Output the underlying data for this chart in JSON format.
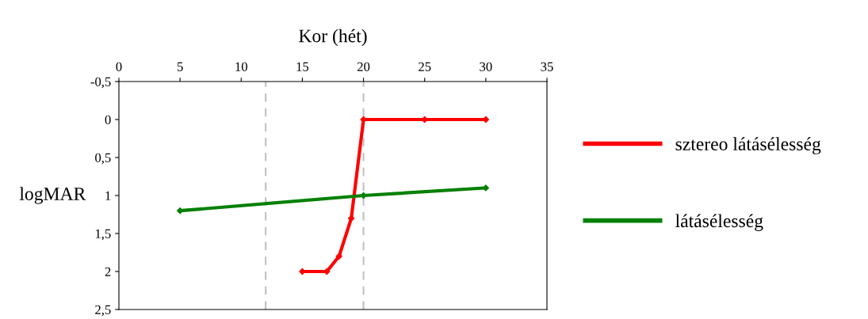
{
  "chart_data": {
    "type": "line",
    "xlabel": "Kor (hét)",
    "ylabel": "logMAR",
    "xlim": [
      0,
      35
    ],
    "xticks": [
      0,
      5,
      10,
      15,
      20,
      25,
      30,
      35
    ],
    "ylim": [
      2.5,
      -0.5
    ],
    "yticks": [
      {
        "value": -0.5,
        "label": "-0,5"
      },
      0,
      {
        "value": 0.5,
        "label": "0,5"
      },
      1,
      {
        "value": 1.5,
        "label": "1,5"
      },
      2,
      {
        "value": 2.5,
        "label": "2,5"
      }
    ],
    "series": [
      {
        "name": "sztereo látásélesség",
        "color": "#ff0000",
        "x": [
          15,
          17,
          18,
          19,
          20,
          25,
          30
        ],
        "values": [
          2,
          2,
          1.8,
          1.3,
          0,
          0,
          0
        ]
      },
      {
        "name": "látásélesség",
        "color": "#008000",
        "x": [
          5,
          20,
          30
        ],
        "values": [
          1.2,
          1.0,
          0.9
        ]
      }
    ],
    "ref_lines": [
      {
        "axis": "x",
        "value": 12,
        "color": "#c0c0c0",
        "line_style": "dashed"
      },
      {
        "axis": "x",
        "value": 20,
        "color": "#c0c0c0",
        "line_style": "dashed"
      }
    ],
    "legend": "right",
    "grid": false,
    "marker": "diamond"
  }
}
